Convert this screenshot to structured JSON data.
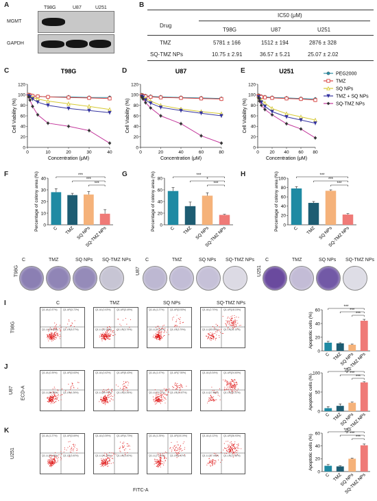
{
  "panels": {
    "A": "A",
    "B": "B",
    "C": "C",
    "D": "D",
    "E": "E",
    "F": "F",
    "G": "G",
    "H": "H",
    "I": "I",
    "J": "J",
    "K": "K"
  },
  "western": {
    "cols": [
      "T98G",
      "U87",
      "U251"
    ],
    "rows": [
      "MGMT",
      "GAPDH"
    ]
  },
  "table": {
    "header_ic50": "IC50 (μM)",
    "header_drug": "Drug",
    "cols": [
      "T98G",
      "U87",
      "U251"
    ],
    "rows": [
      {
        "drug": "TMZ",
        "values": [
          "5781 ± 166",
          "1512 ± 194",
          "2876 ± 328"
        ]
      },
      {
        "drug": "SQ-TMZ NPs",
        "values": [
          "10.75 ± 2.91",
          "36.57 ± 5.21",
          "25.07 ± 2.02"
        ]
      }
    ]
  },
  "viability_legend": [
    "PEG2000",
    "TMZ",
    "SQ NPs",
    "TMZ + SQ NPs",
    "SQ-TMZ NPs"
  ],
  "colors": {
    "peg2000": "#2b8fa6",
    "tmz": "#d9413f",
    "sq": "#d6c932",
    "tmz_sq": "#3433a0",
    "sq_tmz": "#c2359a",
    "bar_c": "#1f8aa3",
    "bar_tmz": "#1d5c72",
    "bar_sq": "#f5b27a",
    "bar_sqtmz": "#ef7a77",
    "dot": "#e02020"
  },
  "chart_data": [
    {
      "type": "line",
      "title": "T98G",
      "xlabel": "Concentration (μM)",
      "ylabel": "Cell Viability (%)",
      "xlim": [
        0,
        40
      ],
      "ylim": [
        0,
        120
      ],
      "xticks": [
        0,
        10,
        20,
        30,
        40
      ],
      "yticks": [
        0,
        20,
        40,
        60,
        80,
        100,
        120
      ],
      "x": [
        0.625,
        1.25,
        2.5,
        5,
        10,
        20,
        30,
        40
      ],
      "series": [
        {
          "name": "PEG2000",
          "values": [
            100,
            99,
            98,
            97,
            96,
            96,
            95,
            95
          ]
        },
        {
          "name": "TMZ",
          "values": [
            100,
            99,
            98,
            97,
            96,
            95,
            94,
            93
          ]
        },
        {
          "name": "SQ NPs",
          "values": [
            99,
            97,
            95,
            92,
            88,
            83,
            78,
            72
          ]
        },
        {
          "name": "TMZ + SQ NPs",
          "values": [
            98,
            96,
            92,
            86,
            80,
            74,
            70,
            66
          ]
        },
        {
          "name": "SQ-TMZ NPs",
          "values": [
            96,
            90,
            78,
            62,
            46,
            40,
            32,
            8
          ]
        }
      ]
    },
    {
      "type": "line",
      "title": "U87",
      "xlabel": "Concentration (μM)",
      "ylabel": "Cell Viability (%)",
      "xlim": [
        0,
        80
      ],
      "ylim": [
        0,
        120
      ],
      "xticks": [
        0,
        20,
        40,
        60,
        80
      ],
      "yticks": [
        0,
        20,
        40,
        60,
        80,
        100,
        120
      ],
      "x": [
        1.25,
        2.5,
        5,
        10,
        20,
        40,
        60,
        80
      ],
      "series": [
        {
          "name": "PEG2000",
          "values": [
            100,
            99,
            98,
            97,
            96,
            95,
            94,
            93
          ]
        },
        {
          "name": "TMZ",
          "values": [
            99,
            98,
            97,
            96,
            95,
            94,
            93,
            92
          ]
        },
        {
          "name": "SQ NPs",
          "values": [
            98,
            96,
            93,
            88,
            80,
            73,
            68,
            64
          ]
        },
        {
          "name": "TMZ + SQ NPs",
          "values": [
            97,
            95,
            90,
            84,
            76,
            70,
            65,
            60
          ]
        },
        {
          "name": "SQ-TMZ NPs",
          "values": [
            96,
            92,
            85,
            75,
            60,
            45,
            22,
            8
          ]
        }
      ]
    },
    {
      "type": "line",
      "title": "U251",
      "xlabel": "Concentration (μM)",
      "ylabel": "Cell Viability (%)",
      "xlim": [
        0,
        80
      ],
      "ylim": [
        0,
        120
      ],
      "xticks": [
        0,
        20,
        40,
        60,
        80
      ],
      "yticks": [
        0,
        20,
        40,
        60,
        80,
        100,
        120
      ],
      "x": [
        1.25,
        2.5,
        5,
        10,
        20,
        40,
        60,
        80
      ],
      "series": [
        {
          "name": "PEG2000",
          "values": [
            99,
            98,
            97,
            96,
            95,
            94,
            93,
            92
          ]
        },
        {
          "name": "TMZ",
          "values": [
            98,
            97,
            96,
            95,
            94,
            93,
            92,
            90
          ]
        },
        {
          "name": "SQ NPs",
          "values": [
            97,
            94,
            90,
            84,
            74,
            64,
            58,
            52
          ]
        },
        {
          "name": "TMZ + SQ NPs",
          "values": [
            96,
            92,
            86,
            78,
            68,
            58,
            52,
            46
          ]
        },
        {
          "name": "SQ-TMZ NPs",
          "values": [
            94,
            88,
            80,
            72,
            62,
            45,
            35,
            18
          ]
        }
      ]
    },
    {
      "type": "bar",
      "ylabel": "Percentage of colony area (%)",
      "ylim": [
        0,
        40
      ],
      "yticks": [
        0,
        10,
        20,
        30,
        40
      ],
      "categories": [
        "C",
        "TMZ",
        "SQ NPs",
        "SQ-TMZ NPs"
      ],
      "values": [
        28,
        25.5,
        26,
        9.5
      ],
      "errors": [
        3,
        1.5,
        2.5,
        3.5
      ],
      "significance": [
        "***",
        "***",
        "***"
      ]
    },
    {
      "type": "bar",
      "ylabel": "Percentage of colony area (%)",
      "ylim": [
        0,
        80
      ],
      "yticks": [
        0,
        20,
        40,
        60,
        80
      ],
      "categories": [
        "C",
        "TMZ",
        "SQ NPs",
        "SQ-TMZ NPs"
      ],
      "values": [
        58,
        32,
        50,
        17
      ],
      "errors": [
        6,
        7,
        5,
        1
      ],
      "significance": [
        "***",
        "*",
        "***"
      ]
    },
    {
      "type": "bar",
      "ylabel": "Percentage of colony area (%)",
      "ylim": [
        0,
        100
      ],
      "yticks": [
        0,
        20,
        40,
        60,
        80,
        100
      ],
      "categories": [
        "C",
        "TMZ",
        "SQ NPs",
        "SQ-TMZ NPs"
      ],
      "values": [
        78,
        47,
        73,
        22
      ],
      "errors": [
        4,
        3,
        2,
        2
      ],
      "significance": [
        "***",
        "***",
        "***"
      ]
    },
    {
      "type": "bar",
      "ylabel": "Apoptotic cells (%)",
      "ylim": [
        0,
        60
      ],
      "yticks": [
        0,
        20,
        40,
        60
      ],
      "categories": [
        "C",
        "TMZ",
        "SQ NPs",
        "SQ-TMZ NPs"
      ],
      "values": [
        12,
        11,
        9,
        44
      ],
      "errors": [
        2,
        1,
        1,
        2
      ],
      "significance": [
        "***",
        "***",
        "***"
      ]
    },
    {
      "type": "bar",
      "ylabel": "Apoptotic cells (%)",
      "ylim": [
        0,
        100
      ],
      "yticks": [
        0,
        50,
        100
      ],
      "categories": [
        "C",
        "TMZ",
        "SQ NPs",
        "SQ-TMZ NPs"
      ],
      "values": [
        8,
        14,
        22,
        75
      ],
      "errors": [
        4,
        5,
        2,
        2
      ],
      "significance": [
        "***",
        "***",
        "***"
      ]
    },
    {
      "type": "bar",
      "ylabel": "Apoptotic cells (%)",
      "ylim": [
        0,
        60
      ],
      "yticks": [
        0,
        20,
        40,
        60
      ],
      "categories": [
        "C",
        "TMZ",
        "SQ NPs",
        "SQ-TMZ NPs"
      ],
      "values": [
        9,
        8,
        20,
        41
      ],
      "errors": [
        2,
        1,
        1,
        2
      ],
      "significance": [
        "***",
        "***",
        "***"
      ]
    }
  ],
  "colony": {
    "lines": [
      "T98G",
      "U87",
      "U251"
    ],
    "treatments": [
      "C",
      "TMZ",
      "SQ NPs",
      "SQ-TMZ NPs"
    ],
    "dish_colors": [
      [
        "#8b7fb3",
        "#9085b6",
        "#958bb9",
        "#c7c5d4"
      ],
      [
        "#bdb8d2",
        "#c2bdd6",
        "#c6c1d8",
        "#dcdae4"
      ],
      [
        "#6a4a9e",
        "#c3bcd6",
        "#7259a6",
        "#dedde6"
      ]
    ]
  },
  "flow": {
    "col_headers": [
      "C",
      "TMZ",
      "SQ NPs",
      "SQ-TMZ NPs"
    ],
    "row_labels": [
      "T98G",
      "U87",
      "U251"
    ],
    "y_axis": "ECD-A",
    "x_axis": "FITC-A",
    "quadrants": [
      [
        [
          "Q1-UL(0.37%)",
          "Q1-UR(3.72%)",
          "Q1-LL(90.64%)",
          "Q1-LR(5.27%)"
        ],
        [
          "Q1-UL(0.43%)",
          "Q1-UR(3.49%)",
          "Q1-LL(92.29%)",
          "Q1-LR(3.79%)"
        ],
        [
          "Q1-UL(1.27%)",
          "Q1-UR(3.53%)",
          "Q1-LL(91.41%)",
          "Q1-LR(3.79%)"
        ],
        [
          "Q1-UL(2.70%)",
          "Q1-UR(18.15%)",
          "Q1-LL(53.00%)",
          "Q1-LR(26.13%)"
        ]
      ],
      [
        [
          "Q1-UL(0.39%)",
          "Q1-UR(3.63%)",
          "Q1-LL(91.95%)",
          "Q1-LR(4.26%)"
        ],
        [
          "Q1-UL(0.42%)",
          "Q1-UR(5.43%)",
          "Q1-LL(89.71%)",
          "Q1-LR(4.26%)"
        ],
        [
          "Q1-UL(1.47%)",
          "Q1-UR(7.50%)",
          "Q1-LL(73.11%)",
          "Q1-LR(10.87%)"
        ],
        [
          "Q1-UL(5.34%)",
          "Q1-UR(24.60%)",
          "Q1-LL(17.86%)",
          "Q1-LR(52.21%)"
        ]
      ],
      [
        [
          "Q1-UL(1.27%)",
          "Q1-UR(3.69%)",
          "Q1-LL(91.68%)",
          "Q1-LR(3.40%)"
        ],
        [
          "Q1-UL(0.39%)",
          "Q1-UR(4.73%)",
          "Q1-LL(91.49%)",
          "Q1-LR(3.40%)"
        ],
        [
          "Q1-UL(1.25%)",
          "Q1-UR(15.19%)",
          "Q1-LL(77.14%)",
          "Q1-LR(6.42%)"
        ],
        [
          "Q1-UL(4.12%)",
          "Q1-UR(36.93%)",
          "Q1-LL(37.49%)",
          "Q1-LR(21.46%)"
        ]
      ]
    ]
  }
}
